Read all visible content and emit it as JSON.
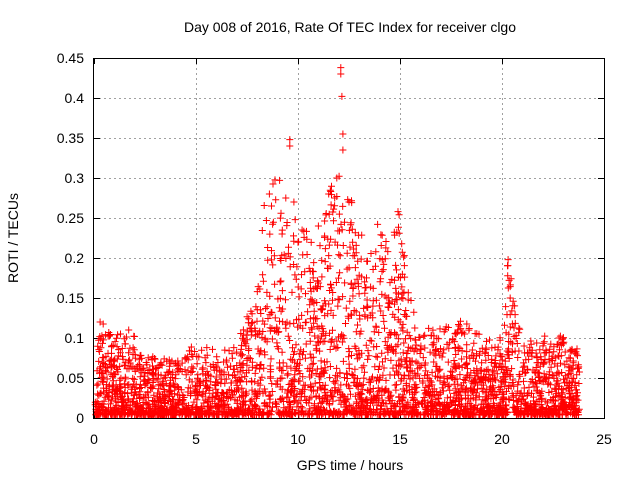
{
  "chart_data": {
    "type": "scatter",
    "title": "Day 008 of 2016, Rate Of TEC Index for receiver clgo",
    "xlabel": "GPS time / hours",
    "ylabel": "ROTI / TECUs",
    "xlim": [
      0,
      25
    ],
    "ylim": [
      0,
      0.45
    ],
    "xticks": [
      0,
      5,
      10,
      15,
      20,
      25
    ],
    "yticks": [
      0,
      0.05,
      0.1,
      0.15,
      0.2,
      0.25,
      0.3,
      0.35,
      0.4,
      0.45
    ],
    "xtick_labels": [
      "0",
      "5",
      "10",
      "15",
      "20",
      "25"
    ],
    "ytick_labels": [
      "0",
      "0.05",
      "0.1",
      "0.15",
      "0.2",
      "0.25",
      "0.3",
      "0.35",
      "0.4",
      "0.45"
    ],
    "grid": true,
    "marker": "+",
    "color": "#ff0000",
    "envelope": {
      "description": "approximate upper envelope of the dense point cloud (hours, ROTI)",
      "x": [
        0,
        0.3,
        1,
        2,
        3,
        4,
        5,
        6,
        7,
        8,
        8.4,
        8.8,
        9.3,
        9.8,
        10.3,
        11,
        11.5,
        12,
        12.5,
        13,
        13.5,
        14,
        14.5,
        15,
        15.5,
        16,
        17,
        18,
        19,
        20,
        20.3,
        21,
        22,
        23,
        23.8
      ],
      "y": [
        0.04,
        0.12,
        0.1,
        0.1,
        0.07,
        0.07,
        0.09,
        0.08,
        0.09,
        0.16,
        0.28,
        0.3,
        0.28,
        0.25,
        0.24,
        0.2,
        0.28,
        0.3,
        0.28,
        0.24,
        0.2,
        0.24,
        0.22,
        0.26,
        0.15,
        0.1,
        0.11,
        0.12,
        0.1,
        0.1,
        0.2,
        0.09,
        0.1,
        0.1,
        0.08
      ]
    },
    "notable_points": [
      {
        "x": 9.6,
        "y": 0.348
      },
      {
        "x": 9.6,
        "y": 0.34
      },
      {
        "x": 12.1,
        "y": 0.438
      },
      {
        "x": 12.1,
        "y": 0.43
      },
      {
        "x": 12.15,
        "y": 0.402
      },
      {
        "x": 12.2,
        "y": 0.355
      },
      {
        "x": 12.2,
        "y": 0.335
      },
      {
        "x": 11.9,
        "y": 0.3
      },
      {
        "x": 9.1,
        "y": 0.297
      },
      {
        "x": 11.8,
        "y": 0.275
      },
      {
        "x": 8.6,
        "y": 0.28
      },
      {
        "x": 8.7,
        "y": 0.265
      },
      {
        "x": 9.4,
        "y": 0.275
      },
      {
        "x": 9.8,
        "y": 0.27
      },
      {
        "x": 12.5,
        "y": 0.27
      },
      {
        "x": 14.9,
        "y": 0.258
      },
      {
        "x": 20.3,
        "y": 0.198
      },
      {
        "x": 20.35,
        "y": 0.172
      },
      {
        "x": 20.4,
        "y": 0.15
      },
      {
        "x": 11.0,
        "y": 0.24
      },
      {
        "x": 13.9,
        "y": 0.242
      },
      {
        "x": 10.2,
        "y": 0.235
      },
      {
        "x": 0.3,
        "y": 0.12
      },
      {
        "x": 1.3,
        "y": 0.105
      },
      {
        "x": 1.7,
        "y": 0.11
      },
      {
        "x": 17.9,
        "y": 0.115
      },
      {
        "x": 16.4,
        "y": 0.112
      },
      {
        "x": 23.0,
        "y": 0.1
      },
      {
        "x": 23.7,
        "y": 0.078
      }
    ],
    "point_count_estimate": 3500
  }
}
